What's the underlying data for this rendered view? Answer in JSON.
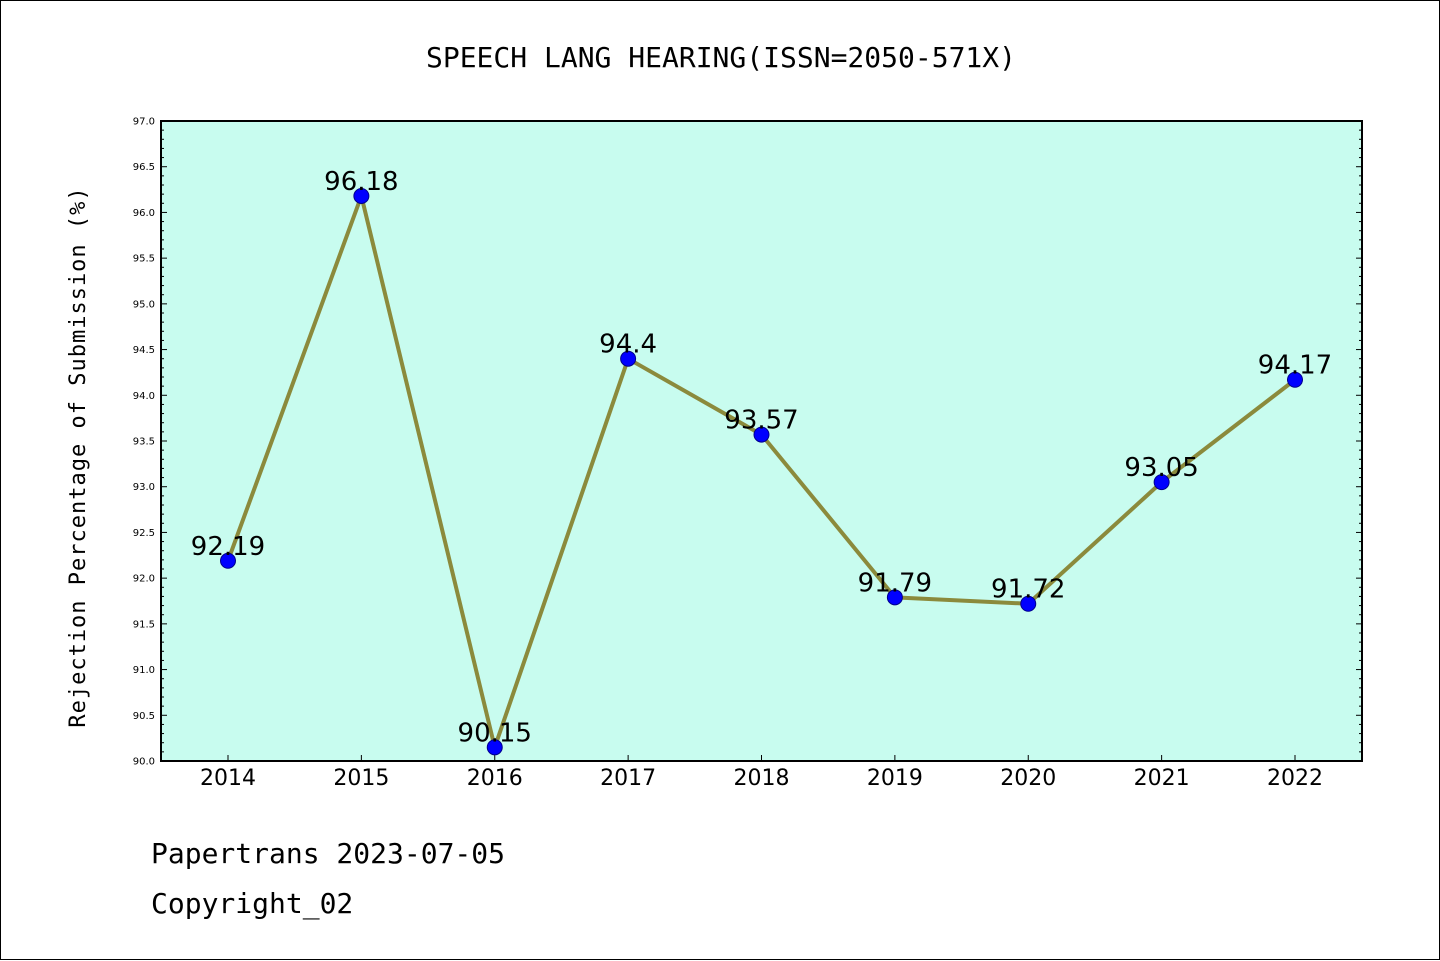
{
  "chart_data": {
    "type": "line",
    "title": "SPEECH LANG HEARING(ISSN=2050-571X)",
    "xlabel": "",
    "ylabel": "Rejection Percentage of Submission (%)",
    "categories": [
      "2014",
      "2015",
      "2016",
      "2017",
      "2018",
      "2019",
      "2020",
      "2021",
      "2022"
    ],
    "series": [
      {
        "values": [
          92.19,
          96.18,
          90.15,
          94.4,
          93.57,
          91.79,
          91.72,
          93.05,
          94.17
        ],
        "data_labels": [
          "92.19",
          "96.18",
          "90.15",
          "94.4",
          "93.57",
          "91.79",
          "91.72",
          "93.05",
          "94.17"
        ]
      }
    ],
    "ylim": [
      90.0,
      97.0
    ],
    "yticks": [
      "90.0",
      "90.5",
      "91.0",
      "91.5",
      "92.0",
      "92.5",
      "93.0",
      "93.5",
      "94.0",
      "94.5",
      "95.0",
      "95.5",
      "96.0",
      "96.5",
      "97.0"
    ],
    "grid": false,
    "colors": {
      "plot_background": "#c8fcef",
      "line": "#8b8a3c",
      "marker": "#0000ff",
      "marker_edge": "#00008b"
    }
  },
  "footer": {
    "date_text": "Papertrans 2023-07-05",
    "copyright_text": "Copyright_02"
  }
}
